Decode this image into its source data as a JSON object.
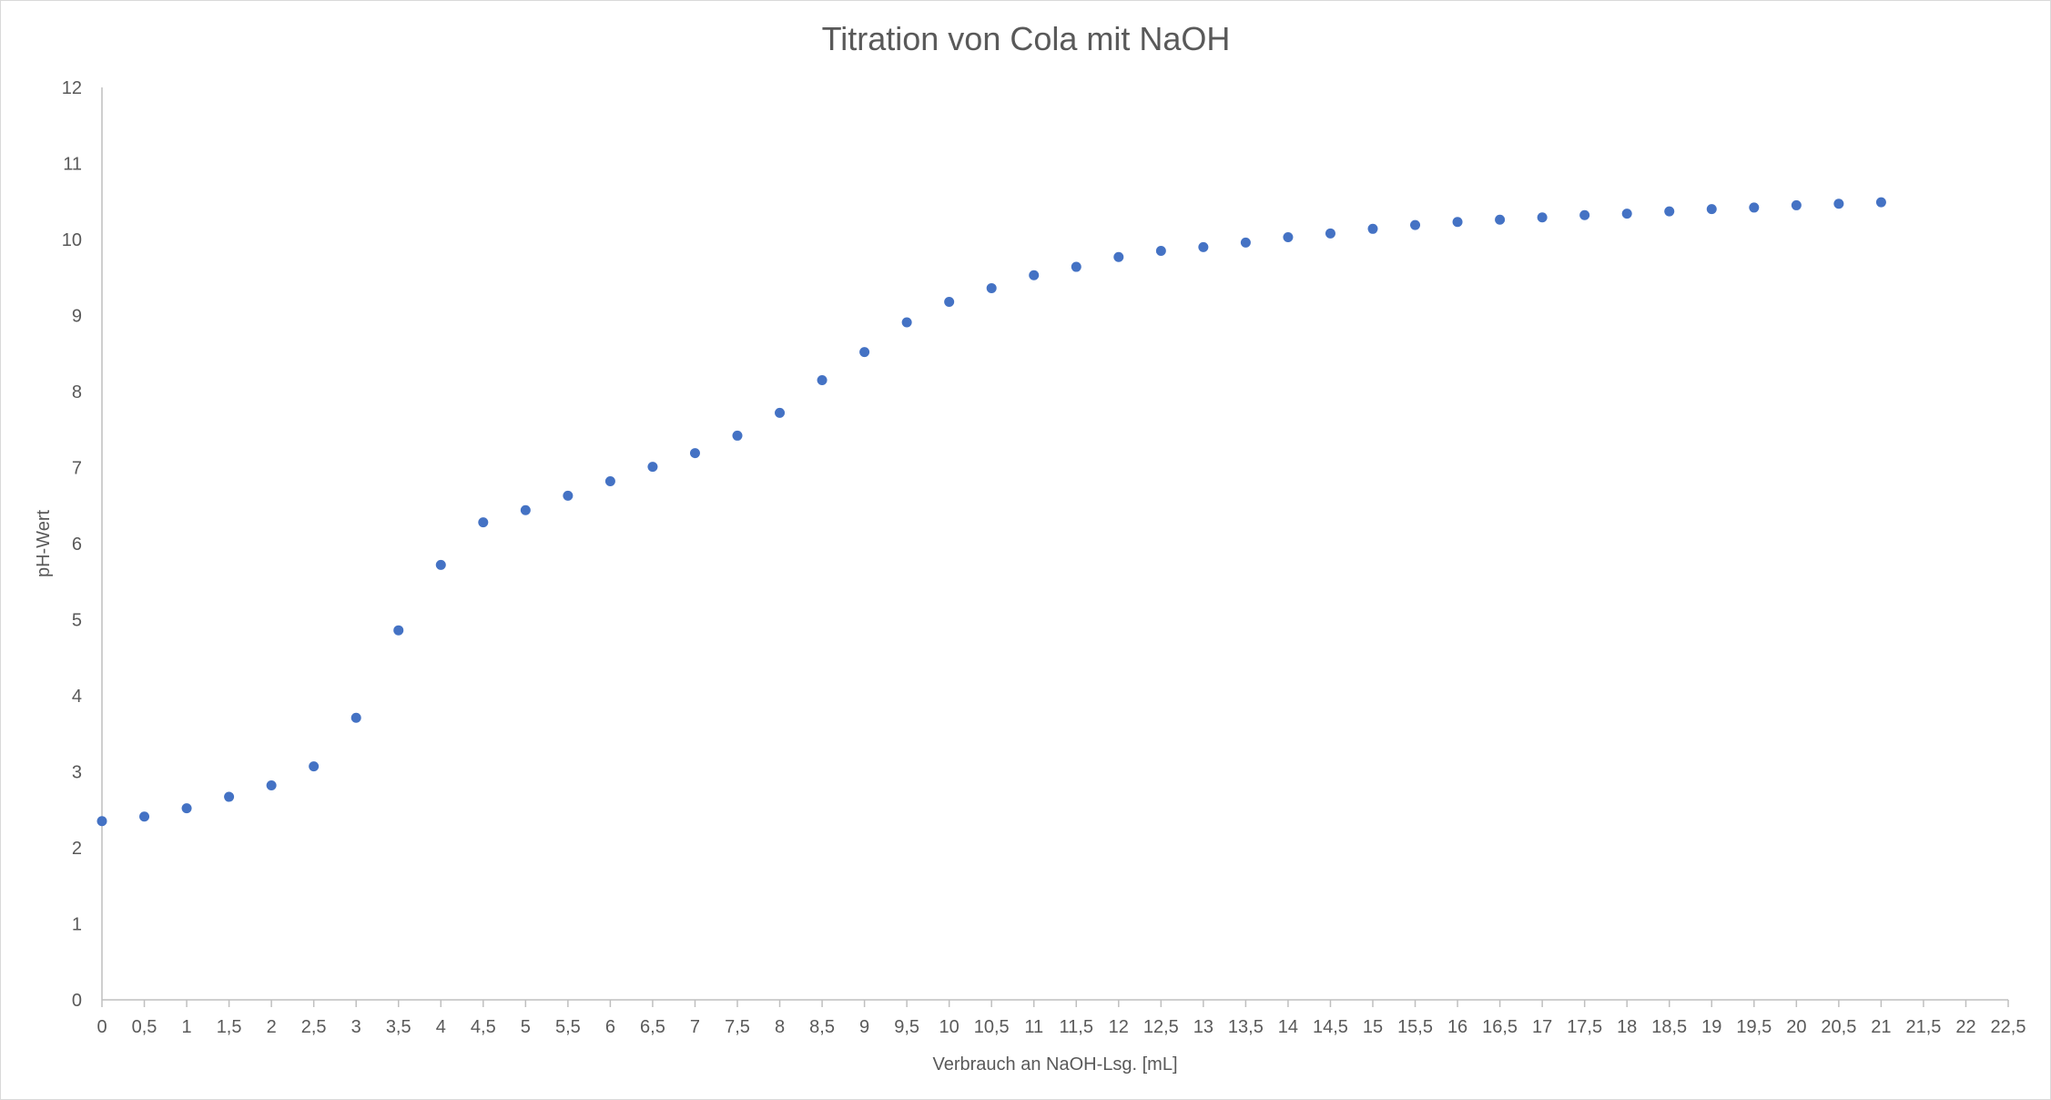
{
  "chart_data": {
    "type": "scatter",
    "title": "Titration von Cola mit NaOH",
    "xlabel": "Verbrauch an NaOH-Lsg. [mL]",
    "ylabel": "pH-Wert",
    "xlim": [
      0,
      22.5
    ],
    "ylim": [
      0,
      12
    ],
    "x_ticks": [
      "0",
      "0,5",
      "1",
      "1,5",
      "2",
      "2,5",
      "3",
      "3,5",
      "4",
      "4,5",
      "5",
      "5,5",
      "6",
      "6,5",
      "7",
      "7,5",
      "8",
      "8,5",
      "9",
      "9,5",
      "10",
      "10,5",
      "11",
      "11,5",
      "12",
      "12,5",
      "13",
      "13,5",
      "14",
      "14,5",
      "15",
      "15,5",
      "16",
      "16,5",
      "17",
      "17,5",
      "18",
      "18,5",
      "19",
      "19,5",
      "20",
      "20,5",
      "21",
      "21,5",
      "22",
      "22,5"
    ],
    "y_ticks": [
      "0",
      "1",
      "2",
      "3",
      "4",
      "5",
      "6",
      "7",
      "8",
      "9",
      "10",
      "11",
      "12"
    ],
    "grid": false,
    "legend": "none",
    "marker_color": "#4472c4",
    "series": [
      {
        "x": [
          0,
          0.5,
          1,
          1.5,
          2,
          2.5,
          3,
          3.5,
          4,
          4.5,
          5,
          5.5,
          6,
          6.5,
          7,
          7.5,
          8,
          8.5,
          9,
          9.5,
          10,
          10.5,
          11,
          11.5,
          12,
          12.5,
          13,
          13.5,
          14,
          14.5,
          15,
          15.5,
          16,
          16.5,
          17,
          17.5,
          18,
          18.5,
          19,
          19.5,
          20,
          20.5,
          21
        ],
        "y": [
          2.35,
          2.41,
          2.52,
          2.67,
          2.82,
          3.07,
          3.71,
          4.86,
          5.72,
          6.28,
          6.44,
          6.63,
          6.82,
          7.01,
          7.19,
          7.42,
          7.72,
          8.15,
          8.52,
          8.91,
          9.18,
          9.36,
          9.53,
          9.64,
          9.77,
          9.85,
          9.9,
          9.96,
          10.03,
          10.08,
          10.14,
          10.19,
          10.23,
          10.26,
          10.29,
          10.32,
          10.34,
          10.37,
          10.4,
          10.42,
          10.45,
          10.47,
          10.49
        ]
      }
    ]
  }
}
